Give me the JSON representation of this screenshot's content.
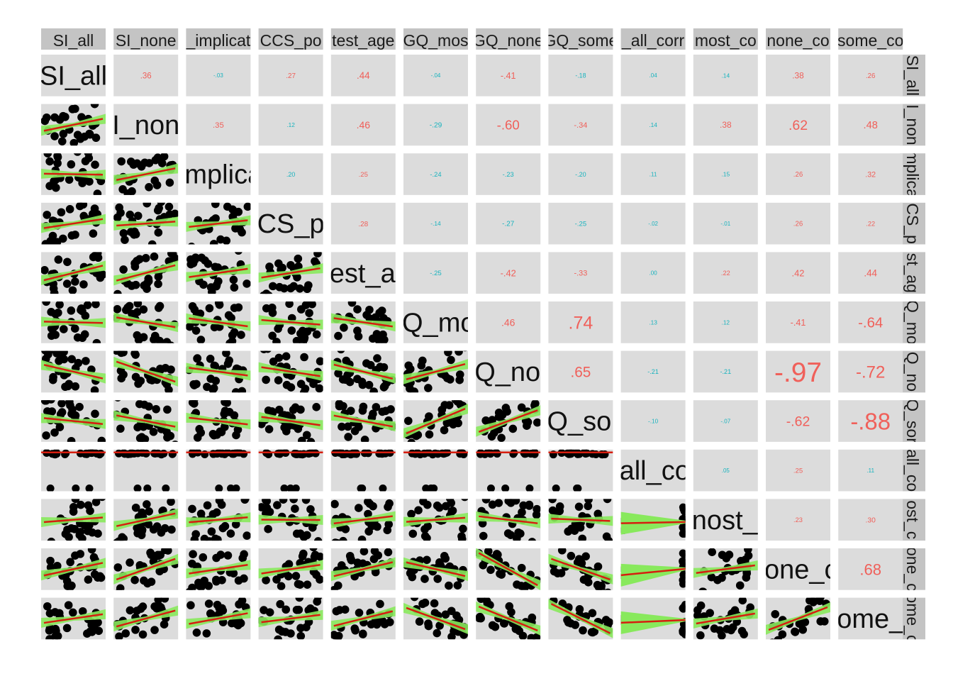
{
  "chart_data": {
    "type": "scatter",
    "subtype": "correlation-matrix",
    "variables": [
      "SI_all",
      "SI_none",
      "implicat",
      "CCS_po",
      "test_age",
      "GQ_mos",
      "GQ_none",
      "GQ_some",
      "all_corr",
      "most_co",
      "none_co",
      "some_co"
    ],
    "column_strip_labels": [
      "SI_all",
      "SI_none",
      "_implicat",
      "CCS_po",
      "test_age",
      "GQ_mos",
      "GQ_none",
      "GQ_some",
      "_all_corr",
      "most_co",
      "none_co",
      "some_co"
    ],
    "row_strip_labels": [
      "SI_all",
      "I_non",
      "mplica",
      "CS_p",
      "st_ag",
      "Q_mo",
      "Q_no",
      "Q_sor",
      "all_co",
      "ost_c",
      "one_c",
      "ome_c"
    ],
    "diagonal_labels": [
      "SI_all",
      "I_non",
      "mplica",
      "CS_p",
      "est_ag",
      "Q_mo",
      "Q_nor",
      "Q_son",
      "all_co",
      "nost_c",
      "one_c",
      "ome_c"
    ],
    "correlations": [
      [
        null,
        ".36",
        "-.03",
        ".27",
        ".44",
        "-.04",
        "-.41",
        "-.18",
        ".04",
        ".14",
        ".38",
        ".26"
      ],
      [
        null,
        null,
        ".35",
        ".12",
        ".46",
        "-.29",
        "-.60",
        "-.34",
        ".14",
        ".38",
        ".62",
        ".48"
      ],
      [
        null,
        null,
        null,
        ".20",
        ".25",
        "-.24",
        "-.23",
        "-.20",
        ".11",
        ".15",
        ".26",
        ".32"
      ],
      [
        null,
        null,
        null,
        null,
        ".28",
        "-.14",
        "-.27",
        "-.25",
        "-.02",
        "-.01",
        ".26",
        ".22"
      ],
      [
        null,
        null,
        null,
        null,
        null,
        "-.25",
        "-.42",
        "-.33",
        ".00",
        ".22",
        ".42",
        ".44"
      ],
      [
        null,
        null,
        null,
        null,
        null,
        null,
        ".46",
        ".74",
        ".13",
        ".12",
        "-.41",
        "-.64"
      ],
      [
        null,
        null,
        null,
        null,
        null,
        null,
        null,
        ".65",
        "-.21",
        "-.21",
        "-.97",
        "-.72"
      ],
      [
        null,
        null,
        null,
        null,
        null,
        null,
        null,
        null,
        "-.10",
        "-.07",
        "-.62",
        "-.88"
      ],
      [
        null,
        null,
        null,
        null,
        null,
        null,
        null,
        null,
        null,
        ".05",
        ".25",
        ".11"
      ],
      [
        null,
        null,
        null,
        null,
        null,
        null,
        null,
        null,
        null,
        null,
        ".23",
        ".30"
      ],
      [
        null,
        null,
        null,
        null,
        null,
        null,
        null,
        null,
        null,
        null,
        null,
        ".68"
      ],
      [
        null,
        null,
        null,
        null,
        null,
        null,
        null,
        null,
        null,
        null,
        null,
        null
      ]
    ],
    "fit_line": "linear regression with confidence band",
    "grid": false
  },
  "colors": {
    "panel_background": "#dcdcdc",
    "strip_background": "#c4c4c4",
    "positive_text": "#f0605a",
    "negative_text": "#18b3be",
    "points": "#000000",
    "fit_line": "#d61e0f",
    "confidence_band": "#88e95c"
  }
}
